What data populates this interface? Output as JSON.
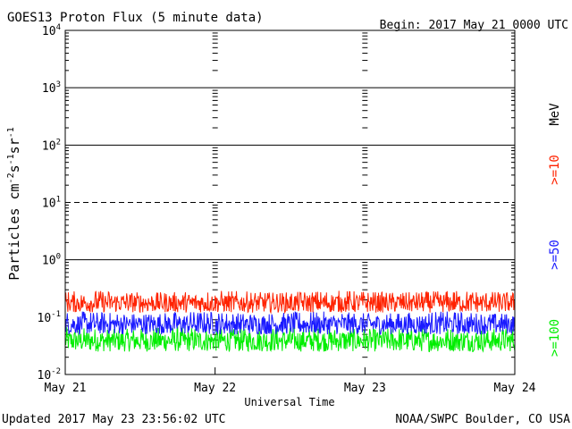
{
  "chart_data": {
    "type": "line",
    "title": "GOES13 Proton Flux (5 minute data)",
    "begin_label": "Begin: 2017 May 21 0000 UTC",
    "xlabel": "Universal Time",
    "ylabel": {
      "prefix": "Particles cm",
      "exp1": "-2",
      "mid1": "s",
      "exp2": "-1",
      "mid2": "sr",
      "exp3": "-1"
    },
    "x_ticks": [
      "May 21",
      "May 22",
      "May 23",
      "May 24"
    ],
    "xlim_days": [
      0,
      3
    ],
    "y_scale": "log",
    "ylim": [
      0.01,
      10000
    ],
    "y_tick_labels": [
      {
        "base": "10",
        "exp": "-2",
        "value": 0.01
      },
      {
        "base": "10",
        "exp": "-1",
        "value": 0.1
      },
      {
        "base": "10",
        "exp": "0",
        "value": 1
      },
      {
        "base": "10",
        "exp": "1",
        "value": 10
      },
      {
        "base": "10",
        "exp": "2",
        "value": 100
      },
      {
        "base": "10",
        "exp": "3",
        "value": 1000
      },
      {
        "base": "10",
        "exp": "4",
        "value": 10000
      }
    ],
    "reference_lines": [
      {
        "value": 1,
        "style": "solid"
      },
      {
        "value": 10,
        "style": "dashed"
      },
      {
        "value": 100,
        "style": "solid"
      },
      {
        "value": 1000,
        "style": "solid"
      }
    ],
    "series": [
      {
        "name": ">=10",
        "color": "#ff2200",
        "typical_range": [
          0.12,
          0.3
        ]
      },
      {
        "name": ">=50",
        "color": "#1a1aff",
        "typical_range": [
          0.05,
          0.13
        ]
      },
      {
        "name": ">=100",
        "color": "#00ee00",
        "typical_range": [
          0.025,
          0.07
        ]
      }
    ],
    "legend_unit": "MeV",
    "legend_position": "right"
  },
  "footer": {
    "updated": "Updated 2017 May 23 23:56:02 UTC",
    "source": "NOAA/SWPC Boulder, CO USA"
  }
}
